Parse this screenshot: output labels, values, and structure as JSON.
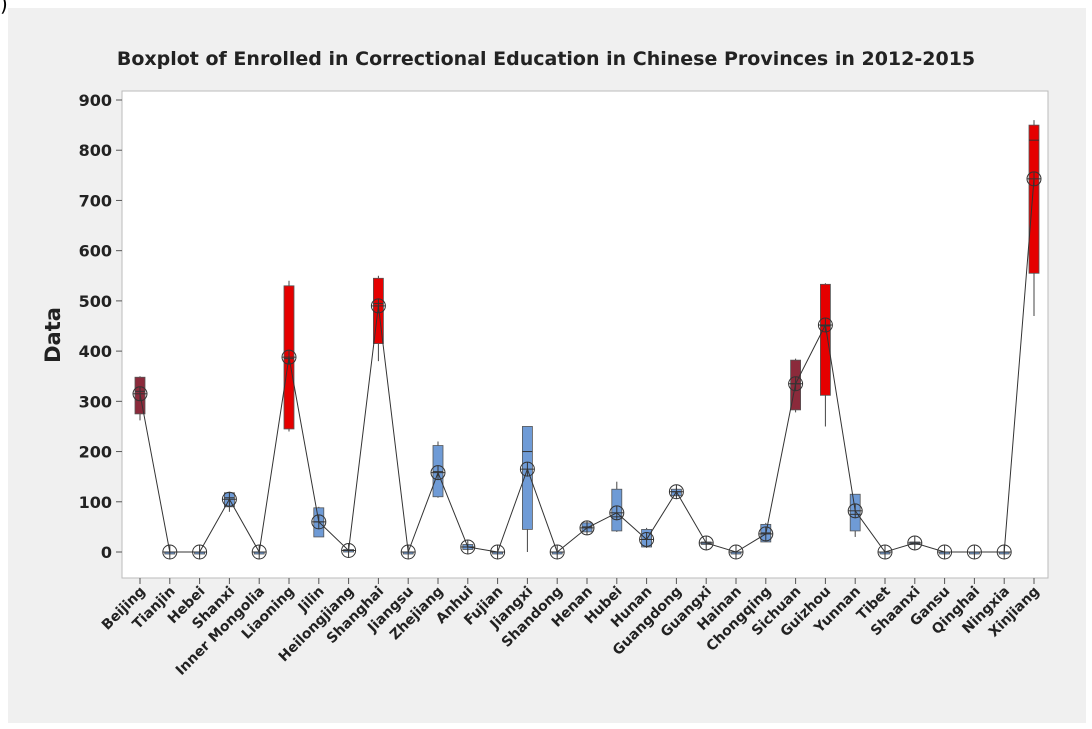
{
  "corner_mark": ")",
  "chart_data": {
    "type": "boxplot",
    "title": "Boxplot of Enrolled in Correctional Education in Chinese Provinces in 2012-2015",
    "xlabel": "",
    "ylabel": "Data",
    "ylim": [
      -50,
      910
    ],
    "yticks": [
      0,
      100,
      200,
      300,
      400,
      500,
      600,
      700,
      800,
      900
    ],
    "grid": false,
    "legend": "none",
    "colors": {
      "red": "#e50000",
      "darkred": "#8b2a3b",
      "blue": "#6f9bd6",
      "outline": "#333333",
      "line": "#333333"
    },
    "categories": [
      "Beijing",
      "Tianjin",
      "Hebei",
      "Shanxi",
      "Inner Mongolia",
      "Liaoning",
      "Jilin",
      "Heilongjiang",
      "Shanghai",
      "Jiangsu",
      "Zhejiang",
      "Anhui",
      "Fujian",
      "Jiangxi",
      "Shandong",
      "Henan",
      "Hubei",
      "Hunan",
      "Guangdong",
      "Guangxi",
      "Hainan",
      "Chongqing",
      "Sichuan",
      "Guizhou",
      "Yunnan",
      "Tibet",
      "Shaanxi",
      "Gansu",
      "Qinghai",
      "Ningxia",
      "Xinjiang"
    ],
    "boxes": [
      {
        "min": 262,
        "q1": 275,
        "median": 320,
        "q3": 348,
        "max": 350,
        "mean": 315,
        "color": "darkred"
      },
      {
        "min": 0,
        "q1": 0,
        "median": 0,
        "q3": 0,
        "max": 0,
        "mean": 0,
        "color": "blue"
      },
      {
        "min": 0,
        "q1": 0,
        "median": 0,
        "q3": 0,
        "max": 0,
        "mean": 0,
        "color": "blue"
      },
      {
        "min": 80,
        "q1": 90,
        "median": 108,
        "q3": 118,
        "max": 120,
        "mean": 105,
        "color": "blue"
      },
      {
        "min": 0,
        "q1": 0,
        "median": 0,
        "q3": 0,
        "max": 0,
        "mean": 0,
        "color": "blue"
      },
      {
        "min": 240,
        "q1": 245,
        "median": 385,
        "q3": 530,
        "max": 540,
        "mean": 388,
        "color": "red"
      },
      {
        "min": 30,
        "q1": 30,
        "median": 60,
        "q3": 88,
        "max": 90,
        "mean": 60,
        "color": "blue"
      },
      {
        "min": 0,
        "q1": 0,
        "median": 3,
        "q3": 5,
        "max": 5,
        "mean": 3,
        "color": "blue"
      },
      {
        "min": 380,
        "q1": 415,
        "median": 495,
        "q3": 545,
        "max": 550,
        "mean": 490,
        "color": "red"
      },
      {
        "min": 0,
        "q1": 0,
        "median": 0,
        "q3": 0,
        "max": 0,
        "mean": 0,
        "color": "blue"
      },
      {
        "min": 108,
        "q1": 110,
        "median": 160,
        "q3": 212,
        "max": 220,
        "mean": 158,
        "color": "blue"
      },
      {
        "min": 3,
        "q1": 5,
        "median": 10,
        "q3": 15,
        "max": 15,
        "mean": 10,
        "color": "blue"
      },
      {
        "min": 0,
        "q1": 0,
        "median": 0,
        "q3": 0,
        "max": 0,
        "mean": 0,
        "color": "blue"
      },
      {
        "min": 0,
        "q1": 45,
        "median": 200,
        "q3": 250,
        "max": 250,
        "mean": 165,
        "color": "blue"
      },
      {
        "min": 0,
        "q1": 0,
        "median": 0,
        "q3": 0,
        "max": 0,
        "mean": 0,
        "color": "blue"
      },
      {
        "min": 35,
        "q1": 40,
        "median": 50,
        "q3": 58,
        "max": 60,
        "mean": 48,
        "color": "blue"
      },
      {
        "min": 40,
        "q1": 42,
        "median": 70,
        "q3": 125,
        "max": 140,
        "mean": 78,
        "color": "blue"
      },
      {
        "min": 8,
        "q1": 10,
        "median": 25,
        "q3": 45,
        "max": 48,
        "mean": 25,
        "color": "blue"
      },
      {
        "min": 110,
        "q1": 112,
        "median": 120,
        "q3": 125,
        "max": 128,
        "mean": 120,
        "color": "blue"
      },
      {
        "min": 15,
        "q1": 15,
        "median": 18,
        "q3": 20,
        "max": 20,
        "mean": 18,
        "color": "blue"
      },
      {
        "min": 0,
        "q1": 0,
        "median": 0,
        "q3": 0,
        "max": 0,
        "mean": 0,
        "color": "blue"
      },
      {
        "min": 20,
        "q1": 20,
        "median": 38,
        "q3": 55,
        "max": 58,
        "mean": 36,
        "color": "blue"
      },
      {
        "min": 278,
        "q1": 283,
        "median": 335,
        "q3": 382,
        "max": 385,
        "mean": 335,
        "color": "darkred"
      },
      {
        "min": 250,
        "q1": 312,
        "median": 450,
        "q3": 533,
        "max": 535,
        "mean": 452,
        "color": "red"
      },
      {
        "min": 30,
        "q1": 42,
        "median": 75,
        "q3": 115,
        "max": 115,
        "mean": 82,
        "color": "blue"
      },
      {
        "min": 0,
        "q1": 0,
        "median": 0,
        "q3": 0,
        "max": 0,
        "mean": 0,
        "color": "blue"
      },
      {
        "min": 15,
        "q1": 15,
        "median": 18,
        "q3": 20,
        "max": 20,
        "mean": 18,
        "color": "blue"
      },
      {
        "min": 0,
        "q1": 0,
        "median": 0,
        "q3": 0,
        "max": 0,
        "mean": 0,
        "color": "blue"
      },
      {
        "min": 0,
        "q1": 0,
        "median": 0,
        "q3": 0,
        "max": 0,
        "mean": 0,
        "color": "blue"
      },
      {
        "min": 0,
        "q1": 0,
        "median": 0,
        "q3": 0,
        "max": 0,
        "mean": 0,
        "color": "blue"
      },
      {
        "min": 470,
        "q1": 555,
        "median": 820,
        "q3": 850,
        "max": 860,
        "mean": 743,
        "color": "red"
      }
    ]
  }
}
